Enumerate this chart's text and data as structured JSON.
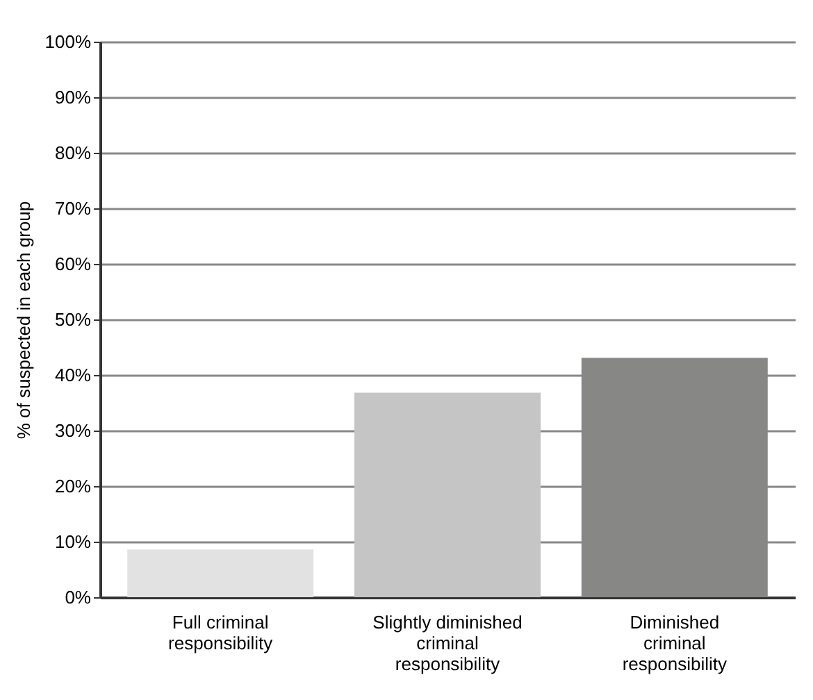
{
  "chart_data": {
    "type": "bar",
    "ylabel": "% of suspected in each group",
    "categories": [
      "Full criminal responsibility",
      "Slightly diminished criminal responsibility",
      "Diminished criminal responsibility"
    ],
    "values": [
      8.6,
      36.8,
      43.1
    ],
    "colors": [
      "#e2e2e2",
      "#c4c5c4",
      "#878786"
    ],
    "ylim": [
      0,
      100
    ],
    "yticks": [
      {
        "value": 0,
        "label": "0%"
      },
      {
        "value": 10,
        "label": "10%"
      },
      {
        "value": 20,
        "label": "20%"
      },
      {
        "value": 30,
        "label": "30%"
      },
      {
        "value": 40,
        "label": "40%"
      },
      {
        "value": 50,
        "label": "50%"
      },
      {
        "value": 60,
        "label": "60%"
      },
      {
        "value": 70,
        "label": "70%"
      },
      {
        "value": 80,
        "label": "80%"
      },
      {
        "value": 90,
        "label": "90%"
      },
      {
        "value": 100,
        "label": "100%"
      }
    ],
    "grid": "y",
    "legend": false
  }
}
